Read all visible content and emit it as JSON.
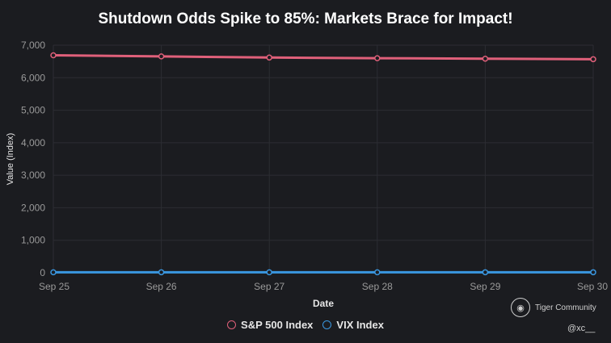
{
  "chart_data": {
    "type": "line",
    "title": "Shutdown Odds Spike to 85%: Markets Brace for Impact!",
    "xlabel": "Date",
    "ylabel": "Value (Index)",
    "categories": [
      "Sep 25",
      "Sep 26",
      "Sep 27",
      "Sep 28",
      "Sep 29",
      "Sep 30"
    ],
    "ylim": [
      0,
      7000
    ],
    "yticks": [
      0,
      1000,
      2000,
      3000,
      4000,
      5000,
      6000,
      7000
    ],
    "ytick_labels": [
      "0",
      "1,000",
      "2,000",
      "3,000",
      "4,000",
      "5,000",
      "6,000",
      "7,000"
    ],
    "grid": true,
    "legend_position": "bottom-center",
    "series": [
      {
        "name": "S&P 500 Index",
        "color": "#e0607a",
        "values": [
          6690,
          6655,
          6620,
          6600,
          6585,
          6570
        ]
      },
      {
        "name": "VIX Index",
        "color": "#3a97e0",
        "values": [
          16,
          17,
          16,
          16,
          17,
          17
        ]
      }
    ]
  },
  "watermark": {
    "text": "Tiger Community",
    "handle": "@xc__"
  }
}
